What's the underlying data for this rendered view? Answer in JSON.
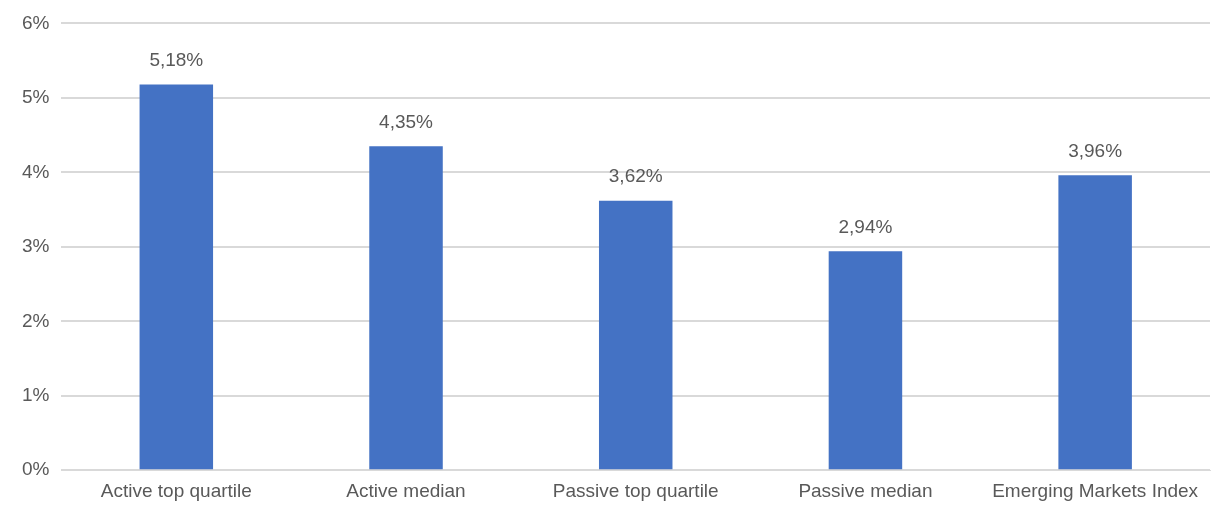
{
  "chart_data": {
    "type": "bar",
    "categories": [
      "Active top quartile",
      "Active median",
      "Passive top quartile",
      "Passive median",
      "Emerging Markets Index"
    ],
    "values": [
      5.18,
      4.35,
      3.62,
      2.94,
      3.96
    ],
    "value_labels": [
      "5,18%",
      "4,35%",
      "3,62%",
      "2,94%",
      "3,96%"
    ],
    "color": "#4472c4",
    "ylim": [
      0,
      6
    ],
    "yticks": [
      {
        "value": 0,
        "label": "0%"
      },
      {
        "value": 1,
        "label": "1%"
      },
      {
        "value": 2,
        "label": "2%"
      },
      {
        "value": 3,
        "label": "3%"
      },
      {
        "value": 4,
        "label": "4%"
      },
      {
        "value": 5,
        "label": "5%"
      },
      {
        "value": 6,
        "label": "6%"
      }
    ],
    "grid": "y"
  }
}
